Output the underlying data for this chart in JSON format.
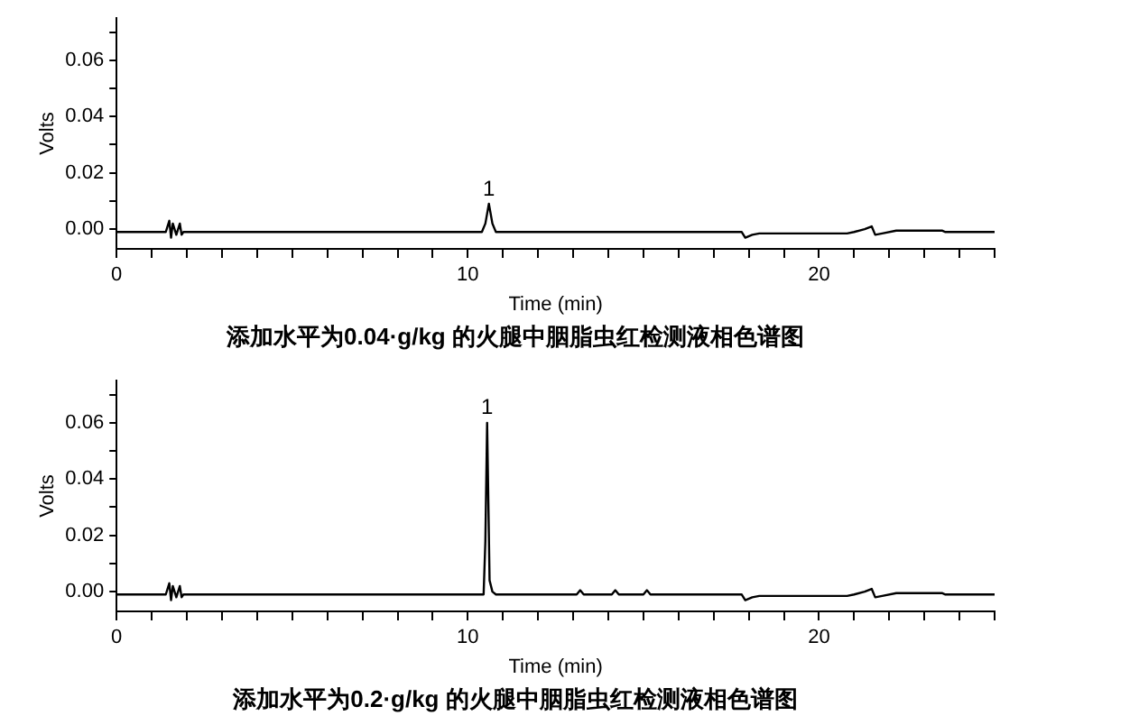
{
  "chart_data": [
    {
      "type": "line",
      "title": "添加水平为0.04·g/kg 的火腿中胭脂虫红检测液相色谱图",
      "xlabel": "Time (min)",
      "ylabel": "Volts",
      "grid": false,
      "legend": false,
      "marker": "none",
      "xlim": [
        0,
        25
      ],
      "ylim": [
        -0.007,
        0.075
      ],
      "xticks": [
        0,
        {
          "value": 1,
          "label": null
        },
        {
          "value": 2,
          "label": null
        },
        {
          "value": 3,
          "label": null
        },
        {
          "value": 4,
          "label": null
        },
        {
          "value": 5,
          "label": null
        },
        {
          "value": 6,
          "label": null
        },
        {
          "value": 7,
          "label": null
        },
        {
          "value": 8,
          "label": null
        },
        {
          "value": 9,
          "label": null
        },
        10,
        {
          "value": 11,
          "label": null
        },
        {
          "value": 12,
          "label": null
        },
        {
          "value": 13,
          "label": null
        },
        {
          "value": 14,
          "label": null
        },
        {
          "value": 15,
          "label": null
        },
        {
          "value": 16,
          "label": null
        },
        {
          "value": 17,
          "label": null
        },
        {
          "value": 18,
          "label": null
        },
        {
          "value": 19,
          "label": null
        },
        20,
        {
          "value": 21,
          "label": null
        },
        {
          "value": 22,
          "label": null
        },
        {
          "value": 23,
          "label": null
        },
        {
          "value": 24,
          "label": null
        },
        {
          "value": 25,
          "label": null
        }
      ],
      "yticks": [
        {
          "value": 0,
          "label": "0.00"
        },
        {
          "value": 0.01,
          "label": null
        },
        {
          "value": 0.02,
          "label": "0.02"
        },
        {
          "value": 0.03,
          "label": null
        },
        {
          "value": 0.04,
          "label": "0.04"
        },
        {
          "value": 0.05,
          "label": null
        },
        {
          "value": 0.06,
          "label": "0.06"
        },
        {
          "value": 0.07,
          "label": null
        }
      ],
      "annotations": [
        {
          "text": "1",
          "x": 10.6,
          "y": 0.009
        }
      ],
      "series": [
        {
          "color": "#000000",
          "x": [
            0,
            1.4,
            1.5,
            1.55,
            1.6,
            1.7,
            1.8,
            1.85,
            1.9,
            8.5,
            10.4,
            10.5,
            10.6,
            10.7,
            10.8,
            17.8,
            17.9,
            18.1,
            18.3,
            20.8,
            21.0,
            21.3,
            21.5,
            21.6,
            21.8,
            22.2,
            23.5,
            23.6,
            25
          ],
          "values": [
            -0.001,
            -0.001,
            0.003,
            -0.003,
            0.002,
            -0.002,
            0.002,
            -0.002,
            -0.001,
            -0.001,
            -0.001,
            0.002,
            0.009,
            0.002,
            -0.001,
            -0.001,
            -0.003,
            -0.002,
            -0.0015,
            -0.0015,
            -0.001,
            0,
            0.001,
            -0.002,
            -0.0015,
            -0.0005,
            -0.0005,
            -0.001,
            -0.001
          ]
        }
      ]
    },
    {
      "type": "line",
      "title": "添加水平为0.2·g/kg 的火腿中胭脂虫红检测液相色谱图",
      "xlabel": "Time (min)",
      "ylabel": "Volts",
      "grid": false,
      "legend": false,
      "marker": "none",
      "xlim": [
        0,
        25
      ],
      "ylim": [
        -0.007,
        0.075
      ],
      "xticks": [
        0,
        {
          "value": 1,
          "label": null
        },
        {
          "value": 2,
          "label": null
        },
        {
          "value": 3,
          "label": null
        },
        {
          "value": 4,
          "label": null
        },
        {
          "value": 5,
          "label": null
        },
        {
          "value": 6,
          "label": null
        },
        {
          "value": 7,
          "label": null
        },
        {
          "value": 8,
          "label": null
        },
        {
          "value": 9,
          "label": null
        },
        10,
        {
          "value": 11,
          "label": null
        },
        {
          "value": 12,
          "label": null
        },
        {
          "value": 13,
          "label": null
        },
        {
          "value": 14,
          "label": null
        },
        {
          "value": 15,
          "label": null
        },
        {
          "value": 16,
          "label": null
        },
        {
          "value": 17,
          "label": null
        },
        {
          "value": 18,
          "label": null
        },
        {
          "value": 19,
          "label": null
        },
        20,
        {
          "value": 21,
          "label": null
        },
        {
          "value": 22,
          "label": null
        },
        {
          "value": 23,
          "label": null
        },
        {
          "value": 24,
          "label": null
        },
        {
          "value": 25,
          "label": null
        }
      ],
      "yticks": [
        {
          "value": 0,
          "label": "0.00"
        },
        {
          "value": 0.01,
          "label": null
        },
        {
          "value": 0.02,
          "label": "0.02"
        },
        {
          "value": 0.03,
          "label": null
        },
        {
          "value": 0.04,
          "label": "0.04"
        },
        {
          "value": 0.05,
          "label": null
        },
        {
          "value": 0.06,
          "label": "0.06"
        },
        {
          "value": 0.07,
          "label": null
        }
      ],
      "annotations": [
        {
          "text": "1",
          "x": 10.55,
          "y": 0.06
        }
      ],
      "series": [
        {
          "color": "#000000",
          "x": [
            0,
            1.4,
            1.5,
            1.55,
            1.6,
            1.7,
            1.8,
            1.85,
            1.9,
            9.8,
            10.45,
            10.5,
            10.55,
            10.62,
            10.7,
            10.8,
            13.1,
            13.2,
            13.3,
            14.1,
            14.2,
            14.3,
            15.0,
            15.1,
            15.2,
            17.8,
            17.9,
            18.1,
            18.3,
            20.8,
            21.0,
            21.3,
            21.5,
            21.6,
            21.8,
            22.2,
            23.5,
            23.6,
            25
          ],
          "values": [
            -0.001,
            -0.001,
            0.003,
            -0.003,
            0.002,
            -0.002,
            0.002,
            -0.002,
            -0.001,
            -0.001,
            -0.001,
            0.018,
            0.06,
            0.004,
            0,
            -0.001,
            -0.001,
            0.0005,
            -0.001,
            -0.001,
            0.0005,
            -0.001,
            -0.001,
            0.0005,
            -0.001,
            -0.001,
            -0.003,
            -0.002,
            -0.0015,
            -0.0015,
            -0.001,
            0,
            0.001,
            -0.002,
            -0.0015,
            -0.0005,
            -0.0005,
            -0.001,
            -0.001
          ]
        }
      ]
    }
  ]
}
